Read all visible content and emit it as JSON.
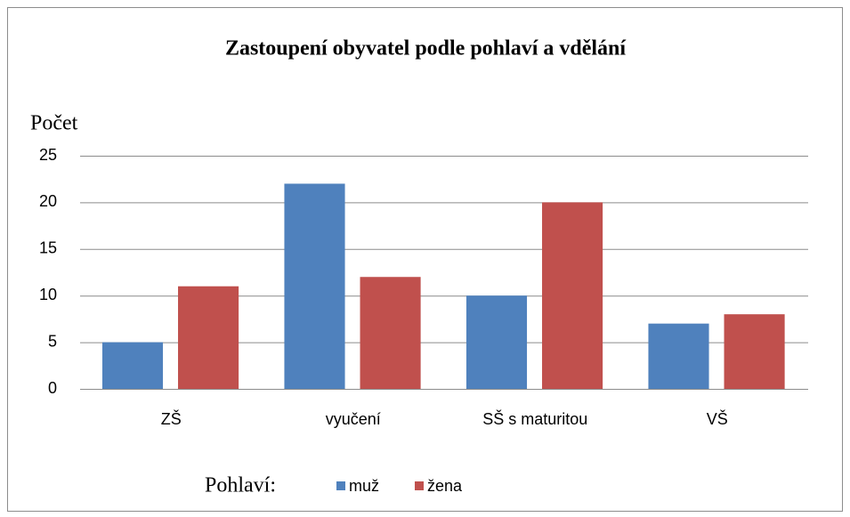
{
  "chart_data": {
    "type": "bar",
    "title": "Zastoupení obyvatel podle pohlaví a vdělání",
    "y_label": "Počet",
    "legend_title": "Pohlaví:",
    "categories": [
      "ZŠ",
      "vyučení",
      "SŠ s maturitou",
      "VŠ"
    ],
    "series": [
      {
        "name": "muž",
        "color": "#4f81bd",
        "values": [
          5,
          22,
          10,
          7
        ]
      },
      {
        "name": "žena",
        "color": "#c0504d",
        "values": [
          11,
          12,
          20,
          8
        ]
      }
    ],
    "ylim": [
      0,
      25
    ],
    "yticks": [
      0,
      5,
      10,
      15,
      20,
      25
    ],
    "grid": true,
    "legend": "bottom"
  }
}
